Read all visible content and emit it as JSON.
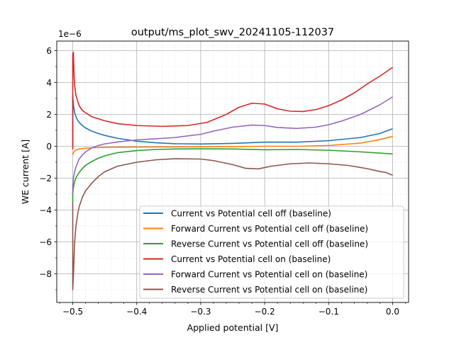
{
  "chart_data": {
    "type": "line",
    "title": "output/ms_plot_swv_20241105-112037",
    "xlabel": "Applied potential [V]",
    "ylabel": "WE current [A]",
    "y_offset_label": "1e−6",
    "xlim": [
      -0.525,
      0.025
    ],
    "ylim": [
      -9.8e-06,
      6.6e-06
    ],
    "x_ticks": [
      -0.5,
      -0.4,
      -0.3,
      -0.2,
      -0.1,
      0.0
    ],
    "x_tick_labels": [
      "−0.5",
      "−0.4",
      "−0.3",
      "−0.2",
      "−0.1",
      "0.0"
    ],
    "y_ticks": [
      -8e-06,
      -6e-06,
      -4e-06,
      -2e-06,
      0,
      2e-06,
      4e-06,
      6e-06
    ],
    "y_tick_labels": [
      "−8",
      "−6",
      "−4",
      "−2",
      "0",
      "2",
      "4",
      "6"
    ],
    "grid": true,
    "minor_grid": true,
    "legend_position": "lower-right",
    "series": [
      {
        "name": "Current vs Potential cell off (baseline)",
        "color": "#1f77b4",
        "x": [
          -0.5,
          -0.5,
          -0.499,
          -0.497,
          -0.494,
          -0.49,
          -0.485,
          -0.48,
          -0.47,
          -0.46,
          -0.45,
          -0.43,
          -0.4,
          -0.37,
          -0.34,
          -0.3,
          -0.25,
          -0.2,
          -0.15,
          -0.1,
          -0.05,
          -0.02,
          0.0
        ],
        "y": [
          0,
          3.2e-06,
          2.6e-06,
          2.1e-06,
          1.75e-06,
          1.5e-06,
          1.3e-06,
          1.15e-06,
          9.5e-07,
          8e-07,
          6.8e-07,
          5e-07,
          3.2e-07,
          2.2e-07,
          1.6e-07,
          1.4e-07,
          1.8e-07,
          2.6e-07,
          2.6e-07,
          3.5e-07,
          5.5e-07,
          8e-07,
          1.1e-06
        ]
      },
      {
        "name": "Forward Current vs Potential cell off (baseline)",
        "color": "#ff7f0e",
        "x": [
          -0.5,
          -0.499,
          -0.497,
          -0.494,
          -0.49,
          -0.48,
          -0.46,
          -0.43,
          -0.4,
          -0.35,
          -0.3,
          -0.25,
          -0.2,
          -0.15,
          -0.1,
          -0.05,
          -0.02,
          0.0
        ],
        "y": [
          -5.5e-07,
          -4e-07,
          -3e-07,
          -2.2e-07,
          -1.7e-07,
          -1.2e-07,
          -8e-08,
          -6e-08,
          -5e-08,
          -4e-08,
          -3e-08,
          -2e-08,
          0.0,
          0.0,
          5e-08,
          2e-07,
          4.2e-07,
          6.2e-07
        ]
      },
      {
        "name": "Reverse Current vs Potential cell off (baseline)",
        "color": "#2ca02c",
        "x": [
          -0.5,
          -0.5,
          -0.499,
          -0.497,
          -0.494,
          -0.49,
          -0.485,
          -0.48,
          -0.47,
          -0.46,
          -0.45,
          -0.43,
          -0.4,
          -0.37,
          -0.34,
          -0.3,
          -0.25,
          -0.2,
          -0.15,
          -0.1,
          -0.05,
          0.0
        ],
        "y": [
          -3.5e-06,
          -3e-06,
          -2.6e-06,
          -2.2e-06,
          -1.9e-06,
          -1.65e-06,
          -1.4e-06,
          -1.2e-06,
          -9.5e-07,
          -7.5e-07,
          -6e-07,
          -4e-07,
          -2.7e-07,
          -2e-07,
          -1.7e-07,
          -1.6e-07,
          -1.7e-07,
          -2.2e-07,
          -2e-07,
          -2.5e-07,
          -3.5e-07,
          -4.8e-07
        ]
      },
      {
        "name": "Current vs Potential cell on (baseline)",
        "color": "#d62728",
        "x": [
          -0.5,
          -0.5,
          -0.499,
          -0.498,
          -0.497,
          -0.495,
          -0.492,
          -0.49,
          -0.485,
          -0.48,
          -0.47,
          -0.45,
          -0.43,
          -0.4,
          -0.36,
          -0.32,
          -0.29,
          -0.26,
          -0.24,
          -0.22,
          -0.2,
          -0.18,
          -0.16,
          -0.14,
          -0.12,
          -0.1,
          -0.08,
          -0.06,
          -0.04,
          -0.02,
          0.0
        ],
        "y": [
          -2e-07,
          5.8e-06,
          5.9e-06,
          4.5e-06,
          3.8e-06,
          3.2e-06,
          2.8e-06,
          2.55e-06,
          2.25e-06,
          2.1e-06,
          1.85e-06,
          1.6e-06,
          1.42e-06,
          1.3e-06,
          1.25e-06,
          1.3e-06,
          1.5e-06,
          2e-06,
          2.45e-06,
          2.7e-06,
          2.65e-06,
          2.35e-06,
          2.2e-06,
          2.18e-06,
          2.3e-06,
          2.55e-06,
          2.9e-06,
          3.35e-06,
          3.9e-06,
          4.4e-06,
          4.95e-06
        ]
      },
      {
        "name": "Forward Current vs Potential cell on (baseline)",
        "color": "#9467bd",
        "x": [
          -0.5,
          -0.5,
          -0.499,
          -0.497,
          -0.495,
          -0.492,
          -0.49,
          -0.485,
          -0.48,
          -0.47,
          -0.46,
          -0.45,
          -0.43,
          -0.4,
          -0.37,
          -0.34,
          -0.3,
          -0.28,
          -0.25,
          -0.22,
          -0.2,
          -0.18,
          -0.15,
          -0.12,
          -0.1,
          -0.08,
          -0.05,
          -0.02,
          0.0
        ],
        "y": [
          -3e-06,
          -2.5e-06,
          -2e-06,
          -1.6e-06,
          -1.3e-06,
          -1e-06,
          -8e-07,
          -5.5e-07,
          -3.5e-07,
          -1e-07,
          5e-08,
          1.5e-07,
          2.7e-07,
          4e-07,
          4.7e-07,
          5.5e-07,
          7.5e-07,
          9.5e-07,
          1.2e-06,
          1.33e-06,
          1.3e-06,
          1.18e-06,
          1.12e-06,
          1.2e-06,
          1.35e-06,
          1.58e-06,
          2e-06,
          2.6e-06,
          3.1e-06
        ]
      },
      {
        "name": "Reverse Current vs Potential cell on (baseline)",
        "color": "#8c564b",
        "x": [
          -0.5,
          -0.5,
          -0.499,
          -0.498,
          -0.497,
          -0.495,
          -0.492,
          -0.49,
          -0.485,
          -0.48,
          -0.47,
          -0.46,
          -0.45,
          -0.43,
          -0.4,
          -0.37,
          -0.34,
          -0.3,
          -0.28,
          -0.25,
          -0.23,
          -0.21,
          -0.19,
          -0.16,
          -0.13,
          -0.1,
          -0.07,
          -0.04,
          -0.02,
          -0.01,
          0.0
        ],
        "y": [
          -3.5e-06,
          -9e-06,
          -8.2e-06,
          -7e-06,
          -6e-06,
          -5e-06,
          -4.2e-06,
          -3.8e-06,
          -3.2e-06,
          -2.8e-06,
          -2.3e-06,
          -1.9e-06,
          -1.6e-06,
          -1.25e-06,
          -1e-06,
          -8.5e-07,
          -7.8e-07,
          -8e-07,
          -9e-07,
          -1.15e-06,
          -1.38e-06,
          -1.42e-06,
          -1.25e-06,
          -1.1e-06,
          -1.05e-06,
          -1.1e-06,
          -1.2e-06,
          -1.4e-06,
          -1.58e-06,
          -1.65e-06,
          -1.82e-06
        ]
      }
    ]
  }
}
